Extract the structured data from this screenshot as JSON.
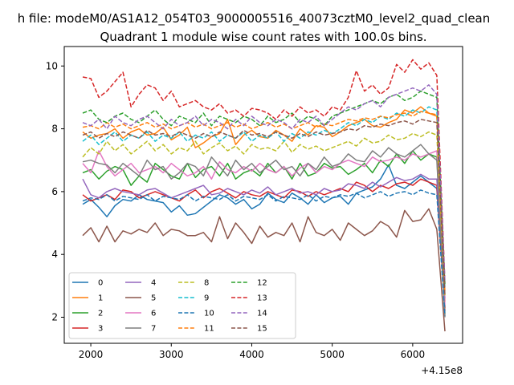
{
  "figure": {
    "suptitle": "h file: modeM0/AS1A12_054T03_9000005516_40073cztM0_level2_quad_clean",
    "title": "Quadrant 1 module wise count rates with 100.0s bins.",
    "offset_label": "+4.15e8"
  },
  "chart_data": {
    "type": "line",
    "title": "Quadrant 1 module wise count rates with 100.0s bins.",
    "xlabel": "",
    "ylabel": "",
    "x_offset": 415000000,
    "xlim": [
      1670,
      6620
    ],
    "ylim": [
      1.17,
      10.62
    ],
    "xticks": [
      2000,
      3000,
      4000,
      5000,
      6000
    ],
    "yticks": [
      2,
      4,
      6,
      8,
      10
    ],
    "grid": false,
    "legend": {
      "placement": "lower-left",
      "columns": 4
    },
    "x": [
      1900,
      2000,
      2100,
      2200,
      2300,
      2400,
      2500,
      2600,
      2700,
      2800,
      2900,
      3000,
      3100,
      3200,
      3300,
      3400,
      3500,
      3600,
      3700,
      3800,
      3900,
      4000,
      4100,
      4200,
      4300,
      4400,
      4500,
      4600,
      4700,
      4800,
      4900,
      5000,
      5100,
      5200,
      5300,
      5400,
      5500,
      5600,
      5700,
      5800,
      5900,
      6000,
      6100,
      6200,
      6300,
      6400
    ],
    "series": [
      {
        "name": "0",
        "color": "#1f77b4",
        "dash": "solid",
        "values": [
          5.6,
          5.75,
          5.5,
          5.2,
          5.55,
          5.75,
          5.7,
          5.9,
          5.75,
          5.7,
          5.65,
          5.35,
          5.55,
          5.25,
          5.3,
          5.5,
          5.7,
          5.9,
          5.8,
          5.6,
          5.75,
          5.45,
          5.6,
          5.95,
          5.75,
          5.65,
          5.95,
          5.8,
          5.6,
          5.9,
          5.65,
          5.8,
          5.85,
          5.6,
          5.95,
          6.05,
          6.15,
          6.4,
          6.85,
          6.2,
          6.1,
          6.3,
          6.5,
          6.3,
          6.1,
          2.3
        ]
      },
      {
        "name": "1",
        "color": "#ff7f0e",
        "dash": "solid",
        "values": [
          7.9,
          7.7,
          7.8,
          7.85,
          8.0,
          7.7,
          7.9,
          8.0,
          7.8,
          7.85,
          8.05,
          7.65,
          7.8,
          8.05,
          7.4,
          7.55,
          7.75,
          7.85,
          8.3,
          7.5,
          7.8,
          7.95,
          7.75,
          7.7,
          7.95,
          7.8,
          7.6,
          8.0,
          7.8,
          8.1,
          8.05,
          7.75,
          7.9,
          8.1,
          8.2,
          8.3,
          8.1,
          8.05,
          8.2,
          8.3,
          8.6,
          8.5,
          8.7,
          8.5,
          8.4,
          2.5
        ]
      },
      {
        "name": "2",
        "color": "#2ca02c",
        "dash": "solid",
        "values": [
          6.6,
          6.7,
          6.4,
          6.65,
          6.8,
          6.7,
          6.2,
          6.5,
          6.3,
          6.9,
          6.7,
          6.5,
          6.4,
          6.9,
          6.45,
          6.7,
          6.8,
          6.5,
          6.9,
          6.4,
          6.6,
          6.7,
          6.5,
          6.9,
          6.6,
          6.8,
          6.4,
          6.9,
          6.5,
          6.6,
          6.9,
          6.75,
          6.8,
          6.55,
          6.7,
          6.9,
          6.6,
          7.0,
          6.8,
          7.2,
          6.9,
          7.3,
          7.0,
          7.2,
          7.1,
          2.1
        ]
      },
      {
        "name": "3",
        "color": "#d62728",
        "dash": "solid",
        "values": [
          5.9,
          5.7,
          5.8,
          5.9,
          5.75,
          6.05,
          6.0,
          5.8,
          5.9,
          6.0,
          5.9,
          5.8,
          5.7,
          5.9,
          6.05,
          5.8,
          6.0,
          6.1,
          5.95,
          5.8,
          6.0,
          5.9,
          5.85,
          6.0,
          5.9,
          5.8,
          6.05,
          6.0,
          5.85,
          6.0,
          5.9,
          6.0,
          6.1,
          6.0,
          6.3,
          6.2,
          6.0,
          6.2,
          6.1,
          6.25,
          6.3,
          6.2,
          6.4,
          6.3,
          6.2,
          2.2
        ]
      },
      {
        "name": "4",
        "color": "#9467bd",
        "dash": "solid",
        "values": [
          6.4,
          5.9,
          5.8,
          6.0,
          6.1,
          6.0,
          5.95,
          5.9,
          6.05,
          6.1,
          5.95,
          5.8,
          5.9,
          6.0,
          6.1,
          6.2,
          5.9,
          5.95,
          6.1,
          6.0,
          5.9,
          6.05,
          5.95,
          6.15,
          5.9,
          6.0,
          6.1,
          5.95,
          6.0,
          5.9,
          6.1,
          6.0,
          6.05,
          6.25,
          6.2,
          6.1,
          6.3,
          6.15,
          6.3,
          6.45,
          6.35,
          6.4,
          6.55,
          6.4,
          6.4,
          2.6
        ]
      },
      {
        "name": "5",
        "color": "#8c564b",
        "dash": "solid",
        "values": [
          4.6,
          4.85,
          4.4,
          4.9,
          4.4,
          4.75,
          4.65,
          4.8,
          4.7,
          5.0,
          4.6,
          4.8,
          4.75,
          4.6,
          4.6,
          4.7,
          4.4,
          5.2,
          4.5,
          5.0,
          4.7,
          4.35,
          4.9,
          4.55,
          4.7,
          4.6,
          5.0,
          4.4,
          5.2,
          4.7,
          4.6,
          4.8,
          4.45,
          5.0,
          4.8,
          4.6,
          4.75,
          5.05,
          4.9,
          4.55,
          5.4,
          5.05,
          5.1,
          5.45,
          4.8,
          1.55
        ]
      },
      {
        "name": "6",
        "color": "#e377c2",
        "dash": "solid",
        "values": [
          6.9,
          6.6,
          7.3,
          6.8,
          6.5,
          6.7,
          6.9,
          6.6,
          6.7,
          6.8,
          6.6,
          6.9,
          6.7,
          6.5,
          6.6,
          6.8,
          6.4,
          6.95,
          6.7,
          6.6,
          6.8,
          6.65,
          6.9,
          6.7,
          6.6,
          6.8,
          6.5,
          6.75,
          6.9,
          6.6,
          6.8,
          6.7,
          6.9,
          7.0,
          6.9,
          6.8,
          7.1,
          6.95,
          7.0,
          7.1,
          7.0,
          7.2,
          7.1,
          7.2,
          7.3,
          2.4
        ]
      },
      {
        "name": "7",
        "color": "#7f7f7f",
        "dash": "solid",
        "values": [
          6.95,
          7.0,
          6.9,
          6.85,
          6.6,
          6.9,
          6.7,
          6.5,
          7.0,
          6.7,
          6.8,
          6.4,
          6.6,
          6.9,
          6.8,
          6.5,
          7.1,
          6.8,
          6.5,
          7.0,
          6.7,
          6.9,
          6.6,
          6.8,
          7.0,
          6.7,
          6.8,
          6.5,
          6.9,
          6.7,
          7.1,
          6.8,
          6.9,
          7.2,
          7.0,
          6.95,
          7.3,
          7.1,
          7.4,
          7.2,
          7.1,
          7.3,
          7.5,
          7.2,
          7.0,
          2.0
        ]
      },
      {
        "name": "8",
        "color": "#bcbd22",
        "dash": "dashed",
        "values": [
          7.1,
          7.4,
          7.2,
          7.6,
          7.3,
          7.5,
          7.2,
          7.4,
          7.6,
          7.3,
          7.5,
          7.2,
          7.4,
          7.3,
          7.6,
          7.2,
          7.4,
          7.55,
          7.3,
          7.45,
          7.2,
          7.5,
          7.35,
          7.4,
          7.3,
          7.6,
          7.25,
          7.5,
          7.35,
          7.45,
          7.3,
          7.4,
          7.5,
          7.6,
          7.45,
          7.7,
          7.55,
          7.6,
          7.8,
          7.65,
          7.7,
          7.85,
          7.75,
          7.9,
          7.8,
          2.7
        ]
      },
      {
        "name": "9",
        "color": "#17becf",
        "dash": "dashed",
        "values": [
          7.6,
          7.8,
          7.5,
          7.7,
          7.9,
          7.6,
          7.8,
          7.7,
          7.9,
          7.6,
          7.8,
          7.7,
          7.9,
          7.6,
          7.8,
          7.7,
          7.9,
          7.6,
          7.8,
          7.7,
          7.9,
          7.6,
          7.8,
          7.7,
          7.9,
          7.6,
          7.85,
          7.7,
          7.9,
          7.8,
          7.95,
          7.85,
          8.0,
          8.2,
          8.1,
          8.3,
          8.2,
          8.4,
          8.3,
          8.5,
          8.4,
          8.6,
          8.5,
          8.7,
          8.6,
          2.9
        ]
      },
      {
        "name": "10",
        "color": "#1f77b4",
        "dash": "dashed",
        "values": [
          5.7,
          5.8,
          5.75,
          5.9,
          5.7,
          5.85,
          5.8,
          5.75,
          5.9,
          5.7,
          5.85,
          5.8,
          5.75,
          5.9,
          5.7,
          5.85,
          5.8,
          5.75,
          5.9,
          5.7,
          5.85,
          5.8,
          5.75,
          5.9,
          5.7,
          5.85,
          5.8,
          5.75,
          5.9,
          5.7,
          5.85,
          5.8,
          5.9,
          5.85,
          5.95,
          5.8,
          5.9,
          6.0,
          5.85,
          5.95,
          6.0,
          5.9,
          6.05,
          5.95,
          5.9,
          2.05
        ]
      },
      {
        "name": "11",
        "color": "#ff7f0e",
        "dash": "dashed",
        "values": [
          8.05,
          8.1,
          8.0,
          8.2,
          8.05,
          8.15,
          8.0,
          8.1,
          8.2,
          8.05,
          8.15,
          8.0,
          8.1,
          8.2,
          8.05,
          8.15,
          8.0,
          8.1,
          8.2,
          8.05,
          8.15,
          8.0,
          8.1,
          8.2,
          8.05,
          8.15,
          8.0,
          8.1,
          8.2,
          8.05,
          8.15,
          8.1,
          8.2,
          8.3,
          8.25,
          8.35,
          8.3,
          8.4,
          8.35,
          8.45,
          8.5,
          8.4,
          8.55,
          8.5,
          8.45,
          2.8
        ]
      },
      {
        "name": "12",
        "color": "#2ca02c",
        "dash": "dashed",
        "values": [
          8.5,
          8.6,
          8.3,
          8.2,
          8.4,
          8.5,
          8.3,
          8.2,
          8.4,
          8.6,
          8.3,
          8.1,
          8.4,
          8.3,
          8.2,
          8.5,
          8.1,
          8.4,
          8.3,
          8.2,
          8.4,
          8.3,
          8.1,
          8.4,
          8.2,
          8.3,
          8.5,
          8.2,
          8.4,
          8.3,
          8.1,
          8.4,
          8.5,
          8.6,
          8.7,
          8.8,
          8.9,
          8.8,
          9.0,
          9.1,
          8.9,
          9.0,
          9.2,
          9.1,
          9.0,
          3.0
        ]
      },
      {
        "name": "13",
        "color": "#d62728",
        "dash": "dashed",
        "values": [
          9.65,
          9.6,
          9.0,
          9.2,
          9.5,
          9.8,
          8.7,
          9.1,
          9.4,
          9.3,
          8.9,
          9.2,
          8.7,
          8.8,
          8.9,
          8.7,
          8.6,
          8.8,
          8.5,
          8.6,
          8.4,
          8.65,
          8.6,
          8.5,
          8.3,
          8.6,
          8.4,
          8.7,
          8.5,
          8.6,
          8.4,
          8.7,
          8.6,
          9.0,
          9.85,
          9.2,
          9.4,
          9.1,
          9.3,
          10.05,
          9.8,
          10.2,
          9.9,
          10.1,
          9.7,
          3.1
        ]
      },
      {
        "name": "14",
        "color": "#9467bd",
        "dash": "dashed",
        "values": [
          8.2,
          8.1,
          8.3,
          8.0,
          8.4,
          8.2,
          8.1,
          8.3,
          8.4,
          8.2,
          8.0,
          8.3,
          8.1,
          8.2,
          8.4,
          8.1,
          8.3,
          8.2,
          8.0,
          8.3,
          8.1,
          8.4,
          8.2,
          8.1,
          8.3,
          8.2,
          8.0,
          8.3,
          8.2,
          8.4,
          8.1,
          8.3,
          8.5,
          8.7,
          8.6,
          8.8,
          8.9,
          8.7,
          9.0,
          9.1,
          9.2,
          9.3,
          9.2,
          9.4,
          9.1,
          3.1
        ]
      },
      {
        "name": "15",
        "color": "#8c564b",
        "dash": "dashed",
        "values": [
          7.8,
          7.9,
          7.7,
          7.85,
          7.75,
          7.9,
          7.8,
          7.7,
          7.95,
          7.8,
          7.85,
          7.75,
          7.9,
          7.8,
          7.7,
          7.85,
          7.75,
          7.9,
          7.8,
          7.7,
          7.95,
          7.8,
          7.85,
          7.75,
          7.9,
          7.8,
          7.7,
          7.85,
          7.75,
          7.9,
          7.8,
          7.85,
          7.9,
          8.0,
          7.95,
          8.1,
          8.05,
          8.15,
          8.1,
          8.2,
          8.25,
          8.15,
          8.3,
          8.25,
          8.2,
          2.7
        ]
      }
    ]
  }
}
